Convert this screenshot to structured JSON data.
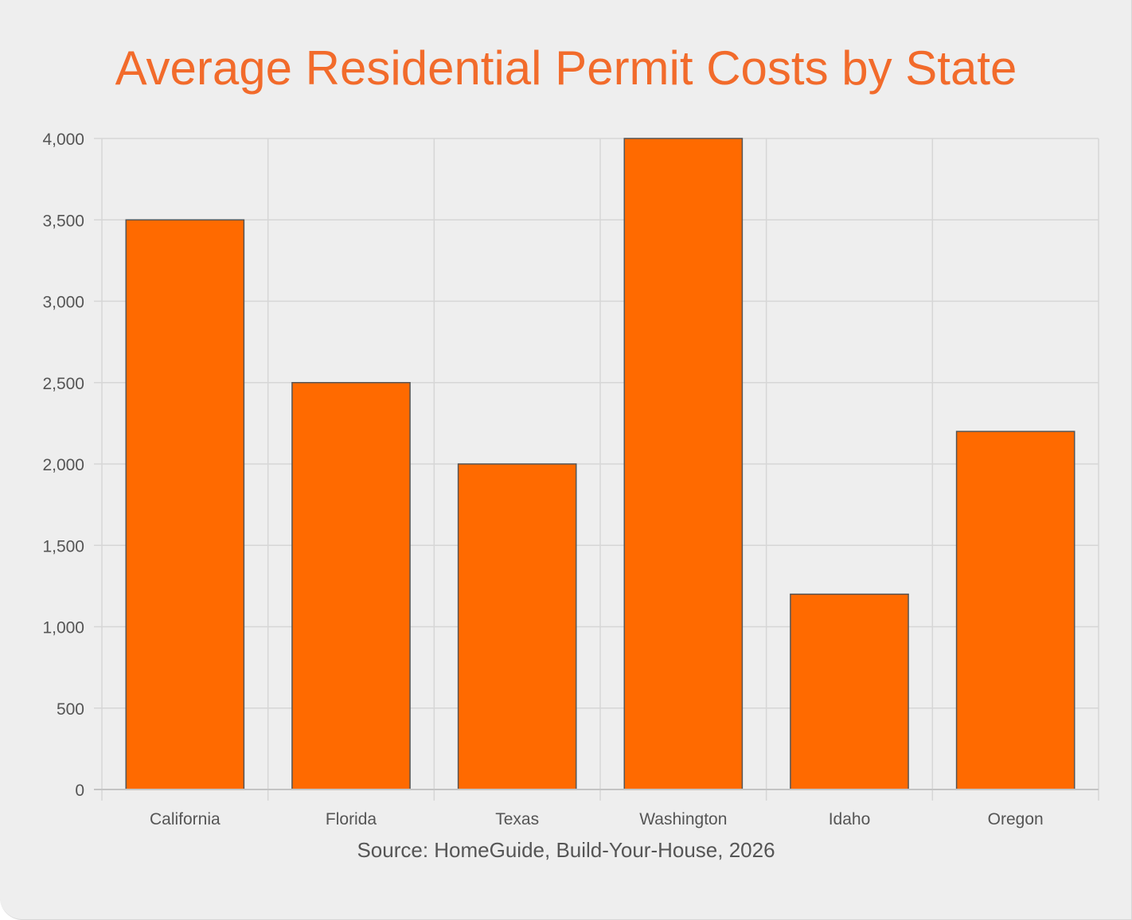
{
  "colors": {
    "background": "#eeeeee",
    "title": "#f26b2b",
    "bar_fill": "#ff6a00",
    "bar_stroke": "#555555",
    "grid": "#d6d6d6",
    "tick_text": "#555555"
  },
  "chart_data": {
    "type": "bar",
    "title": "Average Residential Permit Costs by State",
    "xlabel": "",
    "ylabel": "",
    "categories": [
      "California",
      "Florida",
      "Texas",
      "Washington",
      "Idaho",
      "Oregon"
    ],
    "values": [
      3500,
      2500,
      2000,
      4000,
      1200,
      2200
    ],
    "ylim": [
      0,
      4000
    ],
    "y_ticks": [
      0,
      500,
      1000,
      1500,
      2000,
      2500,
      3000,
      3500,
      4000
    ],
    "y_tick_labels": [
      "0",
      "500",
      "1,000",
      "1,500",
      "2,000",
      "2,500",
      "3,000",
      "3,500",
      "4,000"
    ],
    "grid": true,
    "legend": "none",
    "source": "Source: HomeGuide, Build-Your-House, 2026"
  }
}
